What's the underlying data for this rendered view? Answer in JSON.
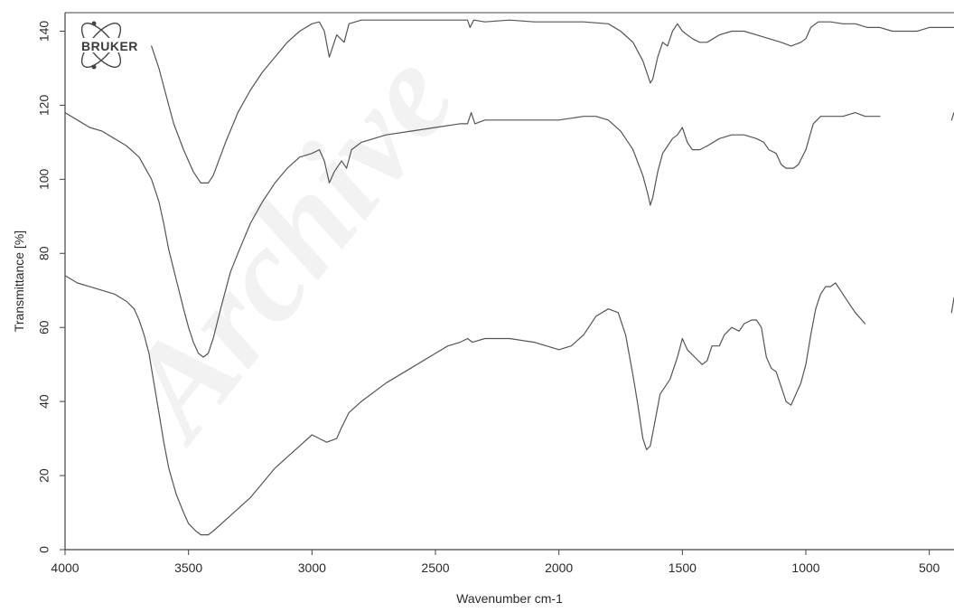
{
  "logo": {
    "text": "BRUKER"
  },
  "watermark": {
    "text": "Archive"
  },
  "chart_data": {
    "type": "line",
    "xlabel": "Wavenumber cm-1",
    "ylabel": "Transmittance [%]",
    "xlim": [
      4000,
      400
    ],
    "ylim": [
      0,
      145
    ],
    "x_reversed": true,
    "x_ticks": [
      4000,
      3500,
      3000,
      2500,
      2000,
      1500,
      1000,
      500
    ],
    "y_ticks": [
      0,
      20,
      40,
      60,
      80,
      100,
      120,
      140
    ],
    "grid": false,
    "series": [
      {
        "values": [
          [
            3650,
            136
          ],
          [
            3620,
            130
          ],
          [
            3600,
            125
          ],
          [
            3560,
            115
          ],
          [
            3520,
            108
          ],
          [
            3480,
            102
          ],
          [
            3450,
            99
          ],
          [
            3420,
            99
          ],
          [
            3400,
            101
          ],
          [
            3350,
            110
          ],
          [
            3300,
            118
          ],
          [
            3250,
            124
          ],
          [
            3200,
            129
          ],
          [
            3150,
            133
          ],
          [
            3100,
            137
          ],
          [
            3050,
            140
          ],
          [
            3000,
            142
          ],
          [
            2970,
            142.5
          ],
          [
            2950,
            140
          ],
          [
            2930,
            133
          ],
          [
            2915,
            136
          ],
          [
            2900,
            139
          ],
          [
            2870,
            137
          ],
          [
            2850,
            142
          ],
          [
            2800,
            143
          ],
          [
            2700,
            143
          ],
          [
            2500,
            143
          ],
          [
            2400,
            143
          ],
          [
            2370,
            143
          ],
          [
            2360,
            141
          ],
          [
            2345,
            143
          ],
          [
            2300,
            142.5
          ],
          [
            2200,
            143
          ],
          [
            2100,
            142.5
          ],
          [
            2000,
            142.5
          ],
          [
            1900,
            142.5
          ],
          [
            1800,
            142
          ],
          [
            1750,
            140
          ],
          [
            1700,
            137
          ],
          [
            1660,
            132
          ],
          [
            1640,
            128
          ],
          [
            1630,
            126
          ],
          [
            1620,
            127
          ],
          [
            1600,
            133
          ],
          [
            1580,
            137
          ],
          [
            1560,
            136
          ],
          [
            1540,
            140
          ],
          [
            1520,
            142
          ],
          [
            1500,
            140
          ],
          [
            1480,
            139
          ],
          [
            1460,
            138
          ],
          [
            1430,
            137
          ],
          [
            1400,
            137
          ],
          [
            1350,
            139
          ],
          [
            1300,
            140
          ],
          [
            1250,
            140
          ],
          [
            1200,
            139
          ],
          [
            1150,
            138
          ],
          [
            1100,
            137
          ],
          [
            1060,
            136
          ],
          [
            1020,
            137
          ],
          [
            1000,
            138
          ],
          [
            980,
            141
          ],
          [
            950,
            142.5
          ],
          [
            900,
            142.5
          ],
          [
            850,
            142
          ],
          [
            800,
            142
          ],
          [
            750,
            141
          ],
          [
            700,
            141
          ],
          [
            650,
            140
          ],
          [
            600,
            140
          ],
          [
            550,
            140
          ],
          [
            500,
            141
          ],
          [
            450,
            141
          ],
          [
            400,
            141
          ]
        ]
      },
      {
        "values": [
          [
            4000,
            118
          ],
          [
            3950,
            116
          ],
          [
            3900,
            114
          ],
          [
            3850,
            113
          ],
          [
            3800,
            111
          ],
          [
            3750,
            109
          ],
          [
            3700,
            106
          ],
          [
            3650,
            100
          ],
          [
            3620,
            94
          ],
          [
            3600,
            88
          ],
          [
            3580,
            81
          ],
          [
            3550,
            73
          ],
          [
            3520,
            65
          ],
          [
            3500,
            60
          ],
          [
            3480,
            56
          ],
          [
            3460,
            53
          ],
          [
            3440,
            52
          ],
          [
            3420,
            53
          ],
          [
            3400,
            57
          ],
          [
            3370,
            65
          ],
          [
            3330,
            75
          ],
          [
            3300,
            80
          ],
          [
            3250,
            88
          ],
          [
            3200,
            94
          ],
          [
            3150,
            99
          ],
          [
            3100,
            103
          ],
          [
            3050,
            106
          ],
          [
            3000,
            107
          ],
          [
            2970,
            108
          ],
          [
            2950,
            105
          ],
          [
            2930,
            99
          ],
          [
            2910,
            102
          ],
          [
            2880,
            105
          ],
          [
            2860,
            103
          ],
          [
            2840,
            108
          ],
          [
            2800,
            110
          ],
          [
            2700,
            112
          ],
          [
            2600,
            113
          ],
          [
            2500,
            114
          ],
          [
            2400,
            115
          ],
          [
            2370,
            115
          ],
          [
            2355,
            118
          ],
          [
            2340,
            115
          ],
          [
            2300,
            116
          ],
          [
            2200,
            116
          ],
          [
            2100,
            116
          ],
          [
            2000,
            116
          ],
          [
            1900,
            117
          ],
          [
            1850,
            117
          ],
          [
            1800,
            116
          ],
          [
            1750,
            113
          ],
          [
            1700,
            108
          ],
          [
            1660,
            101
          ],
          [
            1640,
            96
          ],
          [
            1630,
            93
          ],
          [
            1620,
            95
          ],
          [
            1600,
            102
          ],
          [
            1580,
            107
          ],
          [
            1560,
            109
          ],
          [
            1540,
            111
          ],
          [
            1520,
            112
          ],
          [
            1500,
            114
          ],
          [
            1480,
            110
          ],
          [
            1460,
            108
          ],
          [
            1430,
            108
          ],
          [
            1400,
            109
          ],
          [
            1350,
            111
          ],
          [
            1300,
            112
          ],
          [
            1250,
            112
          ],
          [
            1200,
            111
          ],
          [
            1170,
            110
          ],
          [
            1150,
            108
          ],
          [
            1120,
            107
          ],
          [
            1100,
            104
          ],
          [
            1080,
            103
          ],
          [
            1050,
            103
          ],
          [
            1030,
            104
          ],
          [
            1000,
            108
          ],
          [
            970,
            115
          ],
          [
            940,
            117
          ],
          [
            900,
            117
          ],
          [
            850,
            117
          ],
          [
            800,
            118
          ],
          [
            760,
            117
          ],
          [
            720,
            117
          ],
          [
            700,
            117
          ]
        ]
      },
      {
        "values": [
          [
            4000,
            74
          ],
          [
            3950,
            72
          ],
          [
            3900,
            71
          ],
          [
            3850,
            70
          ],
          [
            3800,
            69
          ],
          [
            3750,
            67
          ],
          [
            3720,
            65
          ],
          [
            3700,
            62
          ],
          [
            3680,
            58
          ],
          [
            3660,
            53
          ],
          [
            3640,
            45
          ],
          [
            3620,
            37
          ],
          [
            3600,
            29
          ],
          [
            3580,
            22
          ],
          [
            3550,
            15
          ],
          [
            3520,
            10
          ],
          [
            3500,
            7
          ],
          [
            3470,
            5
          ],
          [
            3450,
            4
          ],
          [
            3420,
            4
          ],
          [
            3400,
            5
          ],
          [
            3350,
            8
          ],
          [
            3300,
            11
          ],
          [
            3250,
            14
          ],
          [
            3200,
            18
          ],
          [
            3150,
            22
          ],
          [
            3100,
            25
          ],
          [
            3050,
            28
          ],
          [
            3000,
            31
          ],
          [
            2970,
            30
          ],
          [
            2940,
            29
          ],
          [
            2900,
            30
          ],
          [
            2880,
            33
          ],
          [
            2850,
            37
          ],
          [
            2800,
            40
          ],
          [
            2700,
            45
          ],
          [
            2600,
            49
          ],
          [
            2500,
            53
          ],
          [
            2450,
            55
          ],
          [
            2400,
            56
          ],
          [
            2370,
            57
          ],
          [
            2350,
            56
          ],
          [
            2300,
            57
          ],
          [
            2200,
            57
          ],
          [
            2100,
            56
          ],
          [
            2050,
            55
          ],
          [
            2000,
            54
          ],
          [
            1950,
            55
          ],
          [
            1900,
            58
          ],
          [
            1850,
            63
          ],
          [
            1800,
            65
          ],
          [
            1760,
            64
          ],
          [
            1730,
            58
          ],
          [
            1700,
            47
          ],
          [
            1680,
            39
          ],
          [
            1660,
            30
          ],
          [
            1645,
            27
          ],
          [
            1630,
            28
          ],
          [
            1610,
            35
          ],
          [
            1590,
            42
          ],
          [
            1570,
            44
          ],
          [
            1550,
            46
          ],
          [
            1520,
            52
          ],
          [
            1500,
            57
          ],
          [
            1480,
            54
          ],
          [
            1450,
            52
          ],
          [
            1420,
            50
          ],
          [
            1400,
            51
          ],
          [
            1380,
            55
          ],
          [
            1350,
            55
          ],
          [
            1330,
            58
          ],
          [
            1300,
            60
          ],
          [
            1270,
            59
          ],
          [
            1250,
            61
          ],
          [
            1220,
            62
          ],
          [
            1200,
            62
          ],
          [
            1180,
            60
          ],
          [
            1160,
            52
          ],
          [
            1140,
            49
          ],
          [
            1120,
            48
          ],
          [
            1100,
            44
          ],
          [
            1080,
            40
          ],
          [
            1060,
            39
          ],
          [
            1040,
            42
          ],
          [
            1020,
            45
          ],
          [
            1000,
            50
          ],
          [
            980,
            58
          ],
          [
            960,
            65
          ],
          [
            940,
            69
          ],
          [
            920,
            71
          ],
          [
            900,
            71
          ],
          [
            880,
            72
          ],
          [
            860,
            70
          ],
          [
            840,
            68
          ],
          [
            800,
            64
          ],
          [
            760,
            61
          ]
        ]
      },
      {
        "values": [
          [
            410,
            116
          ],
          [
            400,
            118
          ]
        ]
      },
      {
        "values": [
          [
            410,
            64
          ],
          [
            400,
            68
          ]
        ]
      }
    ]
  }
}
